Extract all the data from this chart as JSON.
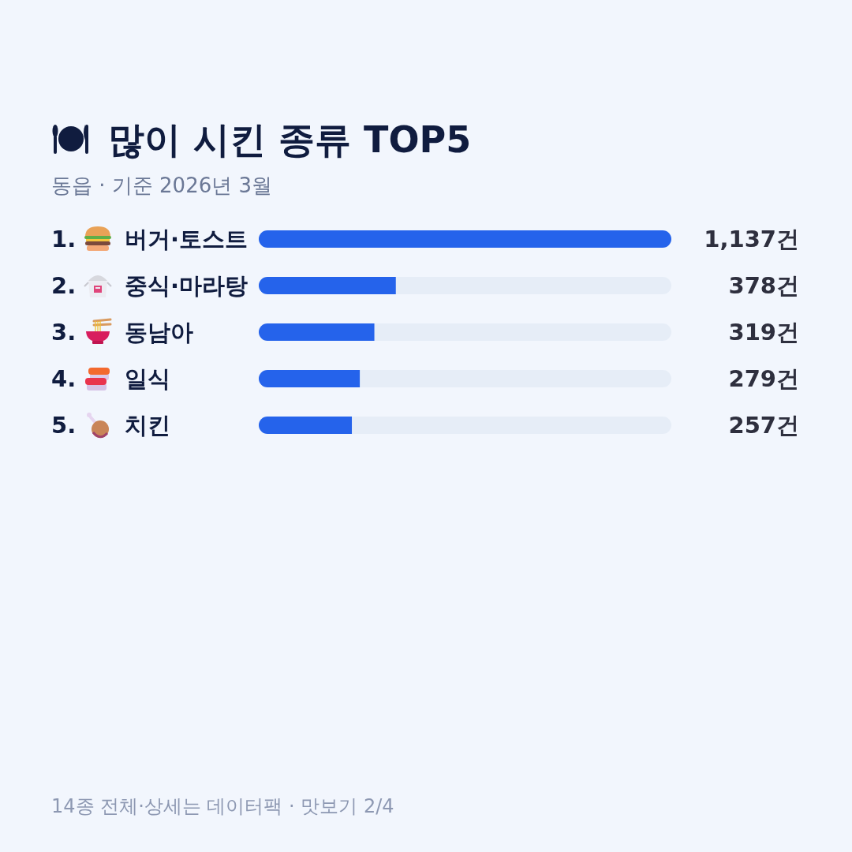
{
  "chart_data": {
    "type": "bar",
    "orientation": "horizontal",
    "stacked": true,
    "title": "많이 시킨 종류 TOP5",
    "subtitle": "동읍 · 기준 2026년 3월",
    "categories": [
      "1. 버거·토스트",
      "2. 중식·마라탕",
      "3. 동남아",
      "4. 일식",
      "5. 치킨"
    ],
    "series": [
      {
        "color": "#2563eb",
        "values": [
          1137,
          378,
          319,
          279,
          257
        ],
        "value_labels": [
          "1,137건",
          "378건",
          "319건",
          "279건",
          "257건"
        ]
      },
      {
        "color": "#e6edf7",
        "values": [
          0,
          759,
          818,
          858,
          880
        ]
      }
    ],
    "tick_labels": "y",
    "annotations": [
      "14종 전체·상세는 데이터팩 · 맛보기 2/4"
    ]
  }
}
